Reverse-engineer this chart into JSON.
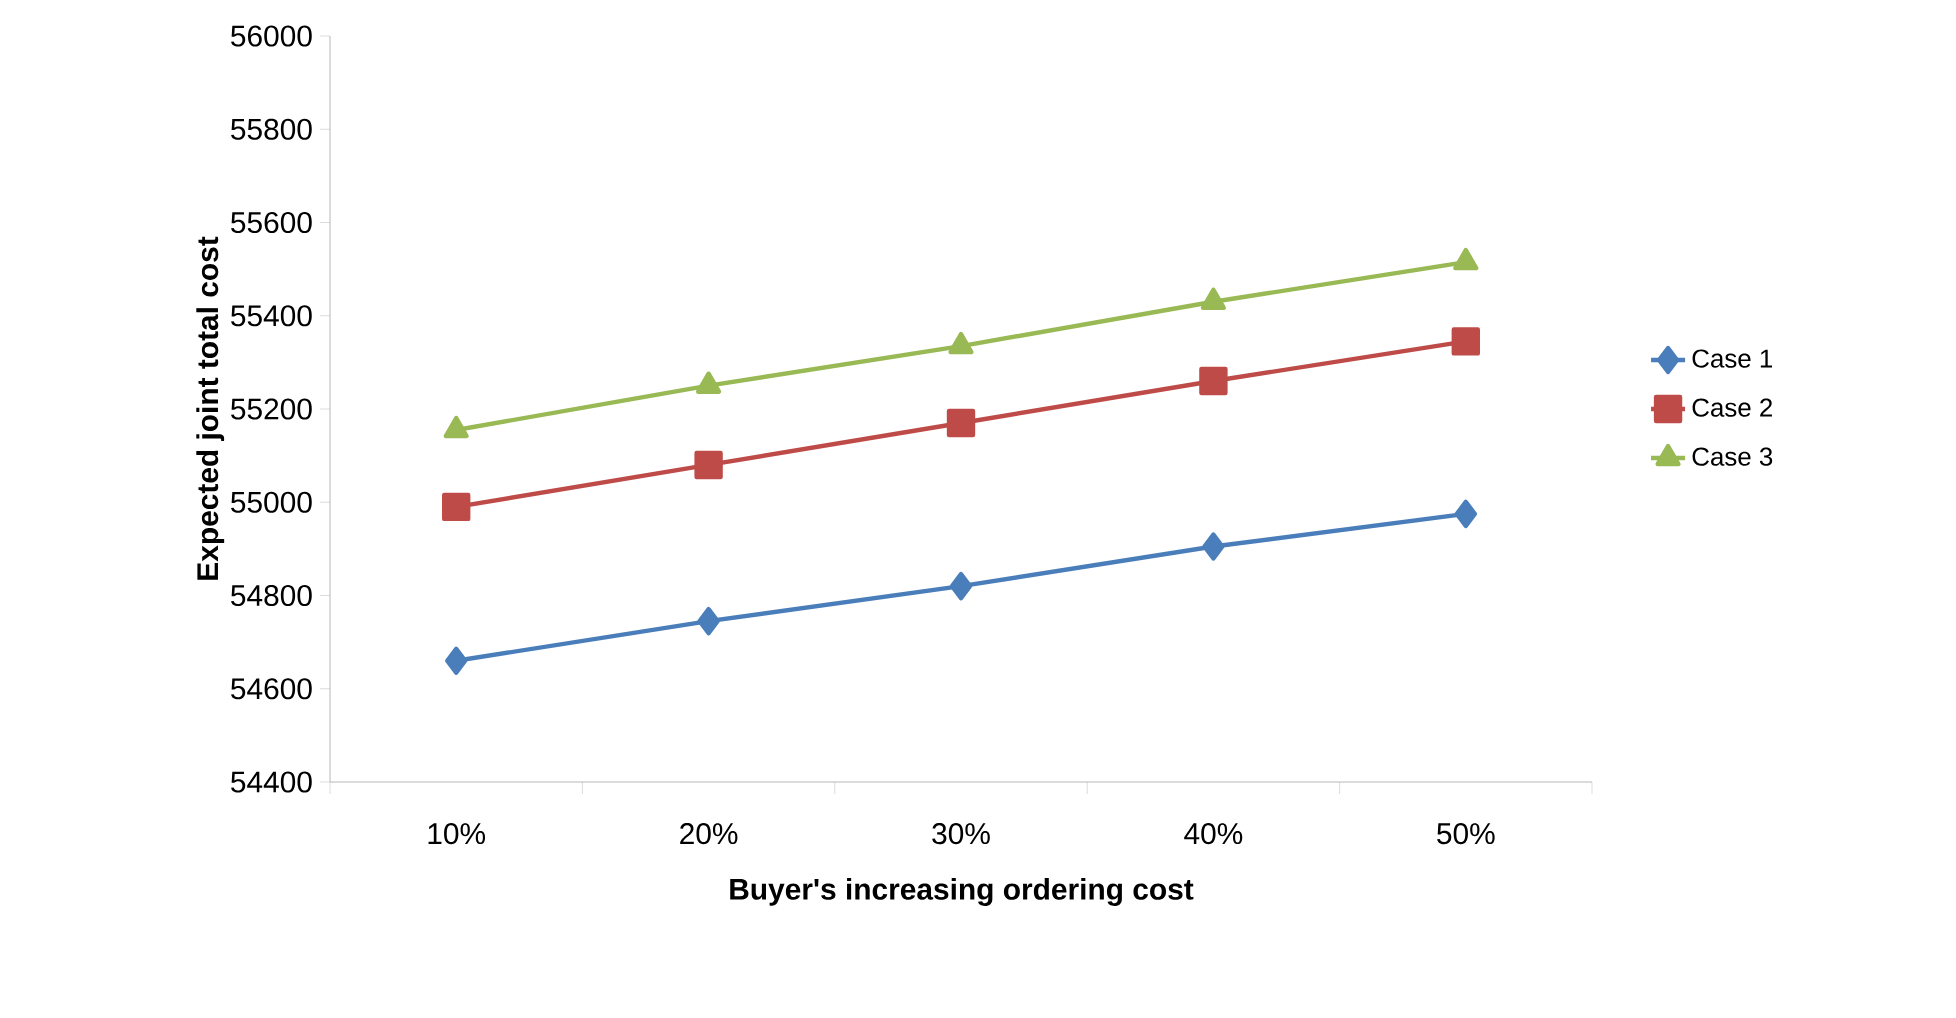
{
  "chart_data": {
    "type": "line",
    "xlabel": "Buyer's increasing  ordering cost",
    "ylabel": "Expected joint total cost",
    "categories": [
      "10%",
      "20%",
      "30%",
      "40%",
      "50%"
    ],
    "series": [
      {
        "name": "Case 1",
        "color": "#4a7ebb",
        "marker": "diamond",
        "values": [
          54660,
          54745,
          54820,
          54905,
          54975
        ]
      },
      {
        "name": "Case 2",
        "color": "#be4b48",
        "marker": "square",
        "values": [
          54990,
          55080,
          55170,
          55260,
          55345
        ]
      },
      {
        "name": "Case 3",
        "color": "#98b954",
        "marker": "triangle",
        "values": [
          55155,
          55250,
          55335,
          55430,
          55515
        ]
      }
    ],
    "ylim": [
      54400,
      56000
    ],
    "yticks": [
      54400,
      54600,
      54800,
      55000,
      55200,
      55400,
      55600,
      55800,
      56000
    ],
    "grid": false,
    "legend": "right",
    "line_style": "solid"
  }
}
